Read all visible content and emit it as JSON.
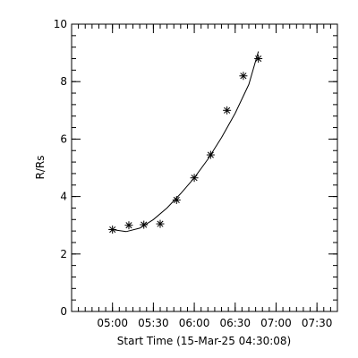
{
  "chart_data": {
    "type": "scatter",
    "title": "",
    "xlabel": "Start Time (15-Mar-25 04:30:08)",
    "ylabel": "R/Rs",
    "xlim": [
      "04:30",
      "07:45"
    ],
    "ylim": [
      0,
      10
    ],
    "x_ticks": [
      "05:00",
      "05:30",
      "06:00",
      "06:30",
      "07:00",
      "07:30"
    ],
    "y_ticks": [
      0,
      2,
      4,
      6,
      8,
      10
    ],
    "grid": false,
    "series": [
      {
        "marker": "asterisk",
        "points": [
          {
            "x": "05:00",
            "y": 2.85
          },
          {
            "x": "05:12",
            "y": 3.0
          },
          {
            "x": "05:23",
            "y": 3.02
          },
          {
            "x": "05:35",
            "y": 3.05
          },
          {
            "x": "05:47",
            "y": 3.88
          },
          {
            "x": "06:00",
            "y": 4.65
          },
          {
            "x": "06:12",
            "y": 5.45
          },
          {
            "x": "06:24",
            "y": 7.0
          },
          {
            "x": "06:36",
            "y": 8.2
          },
          {
            "x": "06:47",
            "y": 8.8
          }
        ]
      },
      {
        "line": "fit",
        "points": [
          {
            "x": "05:00",
            "y": 2.85
          },
          {
            "x": "05:10",
            "y": 2.78
          },
          {
            "x": "05:20",
            "y": 2.9
          },
          {
            "x": "05:30",
            "y": 3.2
          },
          {
            "x": "05:40",
            "y": 3.6
          },
          {
            "x": "05:50",
            "y": 4.1
          },
          {
            "x": "06:00",
            "y": 4.65
          },
          {
            "x": "06:10",
            "y": 5.3
          },
          {
            "x": "06:20",
            "y": 6.05
          },
          {
            "x": "06:30",
            "y": 6.9
          },
          {
            "x": "06:40",
            "y": 7.9
          },
          {
            "x": "06:47",
            "y": 9.05
          }
        ]
      }
    ],
    "colors": {
      "foreground": "#000000",
      "background": "#ffffff"
    }
  }
}
